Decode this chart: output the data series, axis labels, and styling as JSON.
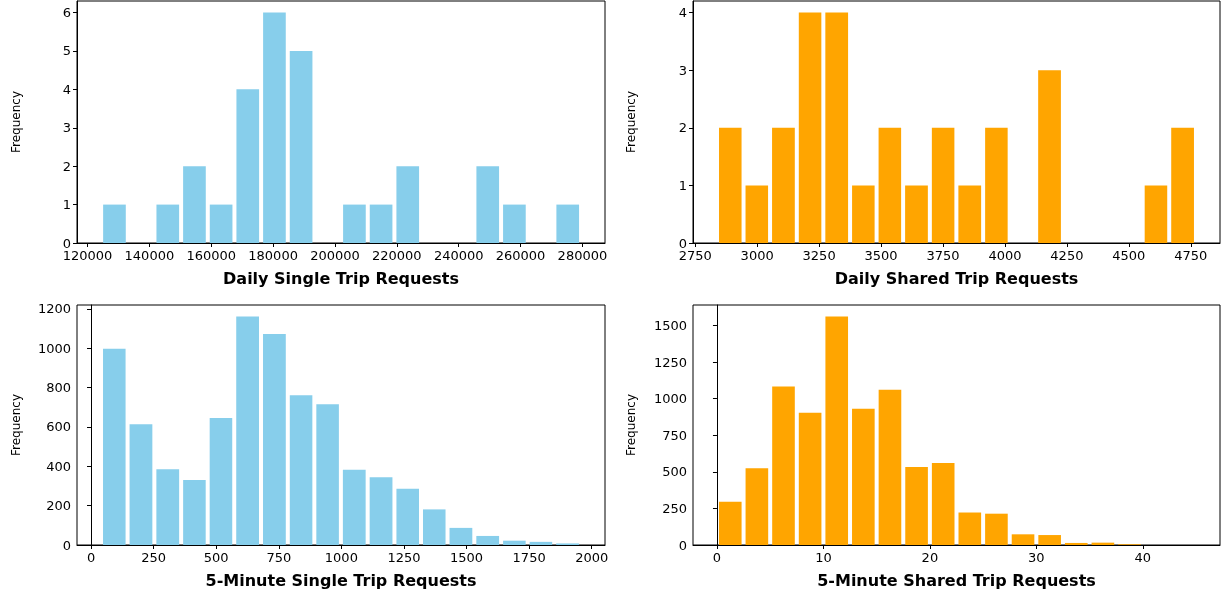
{
  "chart_data": [
    {
      "type": "histogram",
      "xlabel": "Daily Single Trip Requests",
      "ylabel": "Frequency",
      "color": "#87ceeb",
      "bins": [
        124400,
        133020,
        141640,
        150260,
        158880,
        167500,
        176120,
        184740,
        193360,
        201980,
        210600,
        219220,
        227840,
        236460,
        245080,
        253700,
        262320,
        270940,
        279560
      ],
      "values": [
        1,
        0,
        1,
        2,
        1,
        4,
        6,
        5,
        0,
        1,
        1,
        2,
        0,
        0,
        2,
        1,
        0,
        1
      ],
      "xlim": [
        116600,
        287300
      ],
      "xticks": [
        120000,
        140000,
        160000,
        180000,
        200000,
        220000,
        240000,
        260000,
        280000
      ],
      "ylim": [
        0,
        6.3
      ],
      "yticks": [
        0,
        1,
        2,
        3,
        4,
        5,
        6
      ]
    },
    {
      "type": "histogram",
      "xlabel": "Daily Shared Trip Requests",
      "ylabel": "Frequency",
      "color": "#ffa500",
      "bins": [
        2838,
        2945,
        3052,
        3160,
        3267,
        3375,
        3482,
        3589,
        3697,
        3804,
        3912,
        4019,
        4126,
        4234,
        4341,
        4449,
        4556,
        4663,
        4771
      ],
      "values": [
        2,
        1,
        2,
        4,
        4,
        1,
        2,
        1,
        2,
        1,
        2,
        0,
        3,
        0,
        0,
        0,
        1,
        2
      ],
      "xlim": [
        2741,
        4868
      ],
      "xticks": [
        2750,
        3000,
        3250,
        3500,
        3750,
        4000,
        4250,
        4500,
        4750
      ],
      "ylim": [
        0,
        4.2
      ],
      "yticks": [
        0,
        1,
        2,
        3,
        4
      ]
    },
    {
      "type": "histogram",
      "xlabel": "5-Minute Single Trip Requests",
      "ylabel": "Frequency",
      "color": "#87ceeb",
      "bins": [
        40,
        146,
        253,
        360,
        466,
        572,
        679,
        786,
        892,
        998,
        1105,
        1212,
        1318,
        1424,
        1531,
        1638,
        1744,
        1850,
        1957
      ],
      "values": [
        997,
        614,
        385,
        330,
        646,
        1162,
        1073,
        761,
        715,
        383,
        344,
        286,
        181,
        87,
        46,
        22,
        16,
        8
      ],
      "xlim": [
        -56,
        2053
      ],
      "xticks": [
        0,
        250,
        500,
        750,
        1000,
        1250,
        1500,
        1750,
        2000
      ],
      "ylim": [
        0,
        1220
      ],
      "yticks": [
        0,
        200,
        400,
        600,
        800,
        1000,
        1200
      ]
    },
    {
      "type": "histogram",
      "xlabel": "5-Minute Shared Trip Requests",
      "ylabel": "Frequency",
      "color": "#ffa500",
      "bins": [
        0,
        2.5,
        5,
        7.5,
        10,
        12.5,
        15,
        17.5,
        20,
        22.5,
        25,
        27.5,
        30,
        32.5,
        35,
        37.5,
        40,
        42.5,
        45
      ],
      "values": [
        295,
        525,
        1083,
        904,
        1562,
        931,
        1061,
        533,
        560,
        222,
        214,
        73,
        68,
        14,
        16,
        5,
        null,
        null
      ],
      "xlim": [
        -2.25,
        47.25
      ],
      "xticks": [
        0,
        10,
        20,
        30,
        40
      ],
      "ylim": [
        0,
        1640
      ],
      "yticks": [
        0,
        250,
        500,
        750,
        1000,
        1250,
        1500
      ]
    }
  ]
}
